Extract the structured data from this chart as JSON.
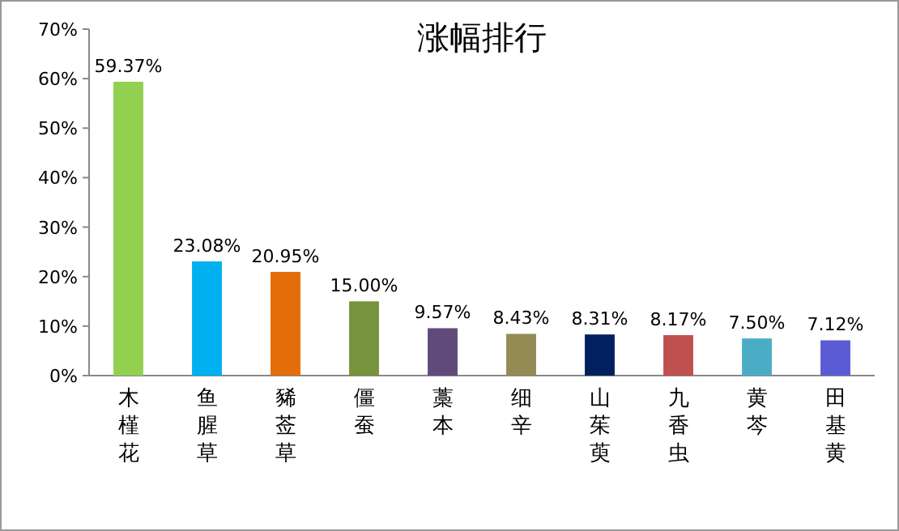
{
  "chart_data": {
    "type": "bar",
    "title": "涨幅排行",
    "categories": [
      "木槿花",
      "鱼腥草",
      "豨莶草",
      "僵蚕",
      "藁本",
      "细辛",
      "山茱萸",
      "九香虫",
      "黄芩",
      "田基黄"
    ],
    "values": [
      59.37,
      23.08,
      20.95,
      15.0,
      9.57,
      8.43,
      8.31,
      8.17,
      7.5,
      7.12
    ],
    "value_labels": [
      "59.37%",
      "23.08%",
      "20.95%",
      "15.00%",
      "9.57%",
      "8.43%",
      "8.31%",
      "8.17%",
      "7.50%",
      "7.12%"
    ],
    "colors": [
      "#92d050",
      "#00b0f0",
      "#e46c0a",
      "#77933c",
      "#604a7b",
      "#948a54",
      "#002060",
      "#c0504d",
      "#4bacc6",
      "#5b5bd6"
    ],
    "ylim": [
      0,
      70
    ],
    "yticks": [
      {
        "value": 0,
        "label": "0%"
      },
      {
        "value": 10,
        "label": "10%"
      },
      {
        "value": 20,
        "label": "20%"
      },
      {
        "value": 30,
        "label": "30%"
      },
      {
        "value": 40,
        "label": "40%"
      },
      {
        "value": 50,
        "label": "50%"
      },
      {
        "value": 60,
        "label": "60%"
      },
      {
        "value": 70,
        "label": "70%"
      }
    ],
    "grid": false
  }
}
